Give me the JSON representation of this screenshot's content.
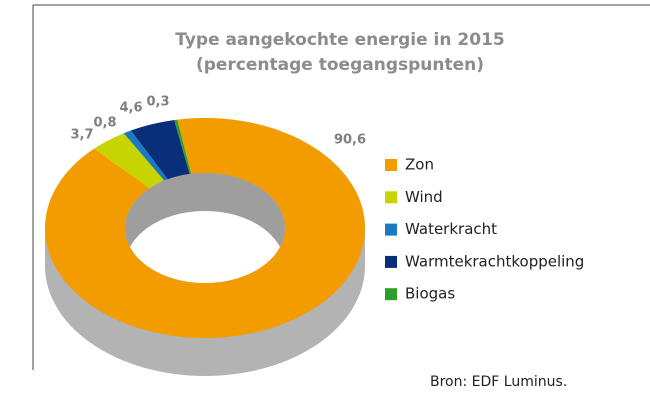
{
  "chart_data": {
    "type": "donut3d",
    "title": "Type aangekochte energie in 2015",
    "subtitle": "(percentage toegangspunten)",
    "categories": [
      "Zon",
      "Wind",
      "Waterkracht",
      "Warmtekrachtkoppeling",
      "Biogas"
    ],
    "values": [
      90.6,
      3.7,
      0.8,
      4.6,
      0.3
    ],
    "value_labels": [
      "90,6",
      "3,7",
      "0,8",
      "4,6",
      "0,3"
    ],
    "colors": [
      "#f39c00",
      "#c8d400",
      "#1a7abf",
      "#0a2f7a",
      "#2aa02a"
    ],
    "legend": "right",
    "source": "Bron: EDF Luminus."
  }
}
